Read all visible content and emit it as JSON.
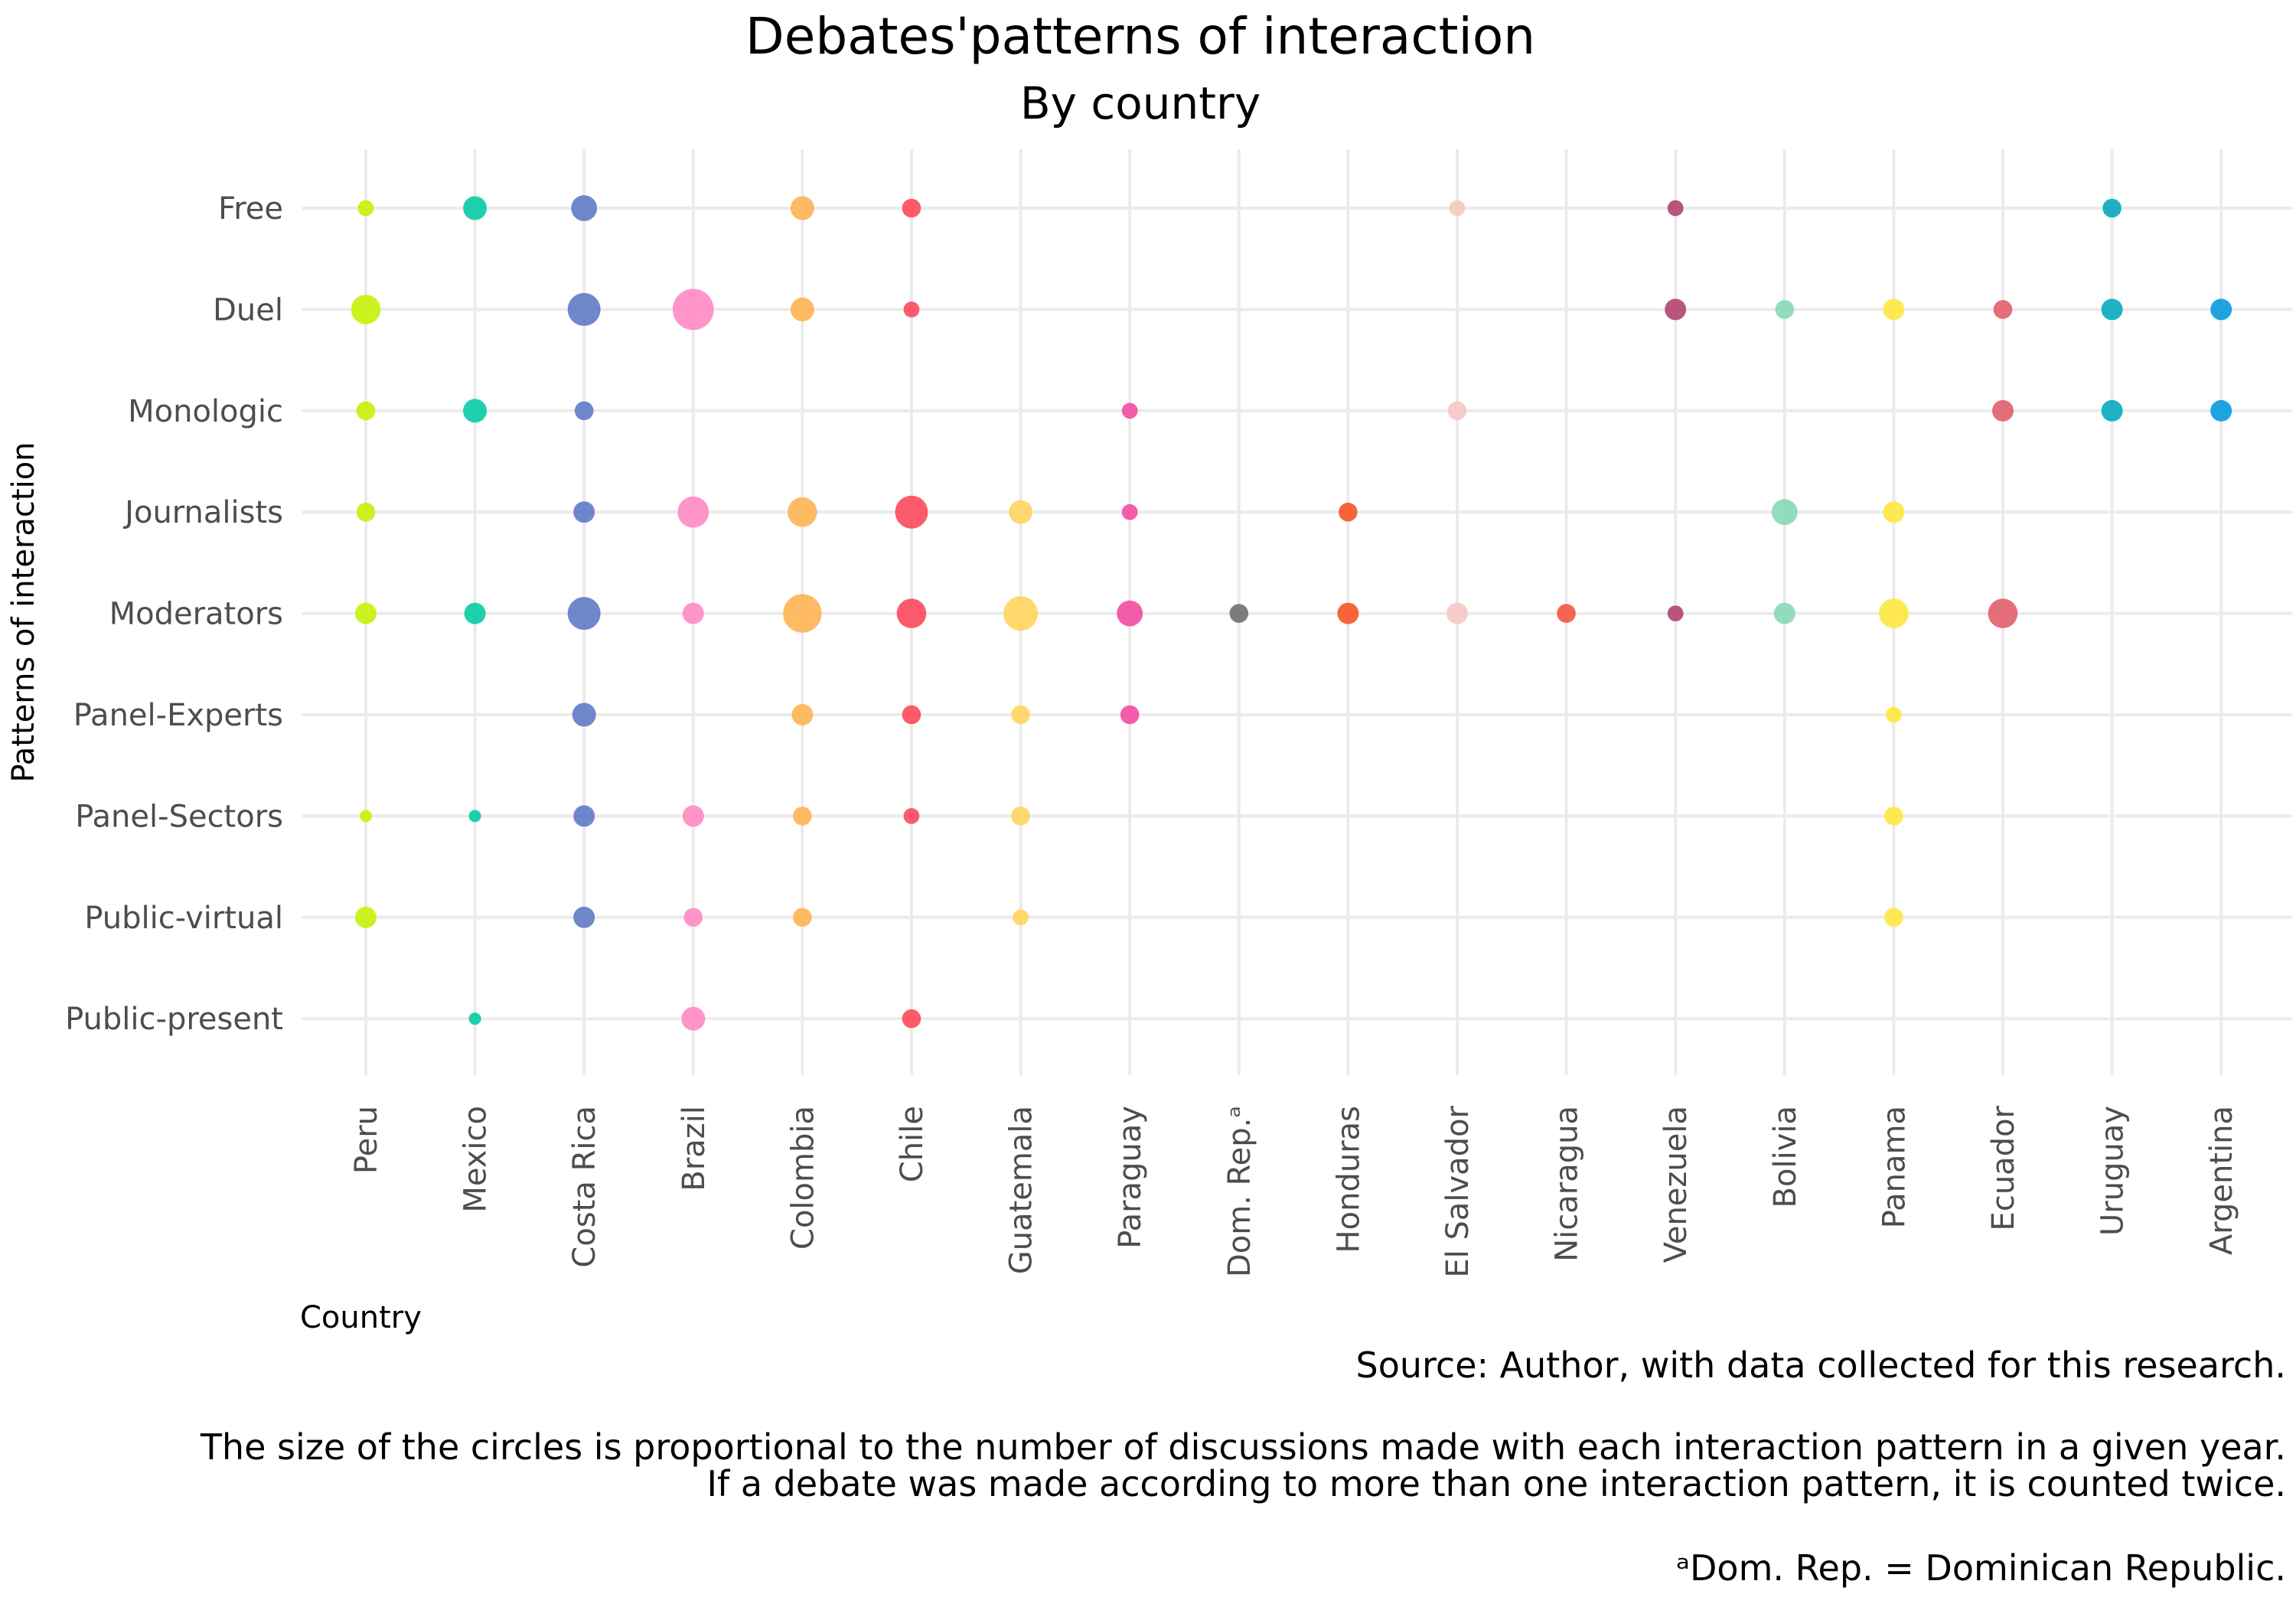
{
  "chart_data": {
    "type": "scatter",
    "title": "Debates'patterns of interaction",
    "subtitle": "By country",
    "xlabel": "Country",
    "ylabel": "Patterns of interaction",
    "caption_lines": [
      "Source: Author, with data collected for this research.",
      "",
      "The size of the circles is proportional to the number of discussions made with each interaction pattern in a given year.",
      "If a debate was made according to more than one interaction pattern, it is counted twice.",
      "",
      "ᵃDom. Rep. = Dominican Republic."
    ],
    "grid": true,
    "legend": "none",
    "countries": [
      "Peru",
      "Mexico",
      "Costa Rica",
      "Brazil",
      "Colombia",
      "Chile",
      "Guatemala",
      "Paraguay",
      "Dom. Rep.ᵃ",
      "Honduras",
      "El Salvador",
      "Nicaragua",
      "Venezuela",
      "Bolivia",
      "Panama",
      "Ecuador",
      "Uruguay",
      "Argentina"
    ],
    "patterns": [
      "Free",
      "Duel",
      "Monologic",
      "Journalists",
      "Moderators",
      "Panel-Experts",
      "Panel-Sectors",
      "Public-virtual",
      "Public-present"
    ],
    "colors": {
      "Peru": "#c5f000",
      "Mexico": "#00c9a3",
      "Costa Rica": "#5b78c4",
      "Brazil": "#ff86c1",
      "Colombia": "#ffb04f",
      "Chile": "#fc4457",
      "Guatemala": "#ffd45a",
      "Paraguay": "#f2479d",
      "Dom. Rep.ᵃ": "#6b6b6b",
      "Honduras": "#f5501e",
      "El Salvador": "#f6c6c0",
      "Nicaragua": "#f5503c",
      "Venezuela": "#b03e6d",
      "Bolivia": "#84d7b3",
      "Panama": "#ffe63a",
      "Ecuador": "#e05a66",
      "Uruguay": "#00a7bb",
      "Argentina": "#0097df"
    },
    "points": [
      {
        "country": "Peru",
        "pattern": "Free",
        "value": 1
      },
      {
        "country": "Peru",
        "pattern": "Duel",
        "value": 4
      },
      {
        "country": "Peru",
        "pattern": "Monologic",
        "value": 1.5
      },
      {
        "country": "Peru",
        "pattern": "Journalists",
        "value": 1.5
      },
      {
        "country": "Peru",
        "pattern": "Moderators",
        "value": 2
      },
      {
        "country": "Peru",
        "pattern": "Panel-Sectors",
        "value": 0.5
      },
      {
        "country": "Peru",
        "pattern": "Public-virtual",
        "value": 2
      },
      {
        "country": "Mexico",
        "pattern": "Free",
        "value": 2.5
      },
      {
        "country": "Mexico",
        "pattern": "Monologic",
        "value": 2.5
      },
      {
        "country": "Mexico",
        "pattern": "Moderators",
        "value": 2
      },
      {
        "country": "Mexico",
        "pattern": "Panel-Sectors",
        "value": 0.5
      },
      {
        "country": "Mexico",
        "pattern": "Public-present",
        "value": 0.5
      },
      {
        "country": "Costa Rica",
        "pattern": "Free",
        "value": 3
      },
      {
        "country": "Costa Rica",
        "pattern": "Duel",
        "value": 5
      },
      {
        "country": "Costa Rica",
        "pattern": "Monologic",
        "value": 1.5
      },
      {
        "country": "Costa Rica",
        "pattern": "Journalists",
        "value": 2
      },
      {
        "country": "Costa Rica",
        "pattern": "Moderators",
        "value": 5
      },
      {
        "country": "Costa Rica",
        "pattern": "Panel-Experts",
        "value": 2.5
      },
      {
        "country": "Costa Rica",
        "pattern": "Panel-Sectors",
        "value": 2
      },
      {
        "country": "Costa Rica",
        "pattern": "Public-virtual",
        "value": 2
      },
      {
        "country": "Brazil",
        "pattern": "Duel",
        "value": 8
      },
      {
        "country": "Brazil",
        "pattern": "Journalists",
        "value": 4.5
      },
      {
        "country": "Brazil",
        "pattern": "Moderators",
        "value": 2
      },
      {
        "country": "Brazil",
        "pattern": "Panel-Sectors",
        "value": 2
      },
      {
        "country": "Brazil",
        "pattern": "Public-virtual",
        "value": 1.5
      },
      {
        "country": "Brazil",
        "pattern": "Public-present",
        "value": 2.5
      },
      {
        "country": "Colombia",
        "pattern": "Free",
        "value": 2.5
      },
      {
        "country": "Colombia",
        "pattern": "Duel",
        "value": 2.5
      },
      {
        "country": "Colombia",
        "pattern": "Journalists",
        "value": 4
      },
      {
        "country": "Colombia",
        "pattern": "Moderators",
        "value": 7
      },
      {
        "country": "Colombia",
        "pattern": "Panel-Experts",
        "value": 2
      },
      {
        "country": "Colombia",
        "pattern": "Panel-Sectors",
        "value": 1.5
      },
      {
        "country": "Colombia",
        "pattern": "Public-virtual",
        "value": 1.5
      },
      {
        "country": "Chile",
        "pattern": "Free",
        "value": 1.5
      },
      {
        "country": "Chile",
        "pattern": "Duel",
        "value": 1
      },
      {
        "country": "Chile",
        "pattern": "Journalists",
        "value": 5
      },
      {
        "country": "Chile",
        "pattern": "Moderators",
        "value": 4
      },
      {
        "country": "Chile",
        "pattern": "Panel-Experts",
        "value": 1.5
      },
      {
        "country": "Chile",
        "pattern": "Panel-Sectors",
        "value": 1
      },
      {
        "country": "Chile",
        "pattern": "Public-present",
        "value": 1.5
      },
      {
        "country": "Guatemala",
        "pattern": "Journalists",
        "value": 2.5
      },
      {
        "country": "Guatemala",
        "pattern": "Moderators",
        "value": 5.5
      },
      {
        "country": "Guatemala",
        "pattern": "Panel-Experts",
        "value": 1.5
      },
      {
        "country": "Guatemala",
        "pattern": "Panel-Sectors",
        "value": 1.5
      },
      {
        "country": "Guatemala",
        "pattern": "Public-virtual",
        "value": 1
      },
      {
        "country": "Paraguay",
        "pattern": "Monologic",
        "value": 1
      },
      {
        "country": "Paraguay",
        "pattern": "Journalists",
        "value": 1
      },
      {
        "country": "Paraguay",
        "pattern": "Moderators",
        "value": 3
      },
      {
        "country": "Paraguay",
        "pattern": "Panel-Experts",
        "value": 1.5
      },
      {
        "country": "Dom. Rep.ᵃ",
        "pattern": "Moderators",
        "value": 1.5
      },
      {
        "country": "Honduras",
        "pattern": "Journalists",
        "value": 1.5
      },
      {
        "country": "Honduras",
        "pattern": "Moderators",
        "value": 2
      },
      {
        "country": "El Salvador",
        "pattern": "Free",
        "value": 1
      },
      {
        "country": "El Salvador",
        "pattern": "Monologic",
        "value": 1.5
      },
      {
        "country": "El Salvador",
        "pattern": "Moderators",
        "value": 2
      },
      {
        "country": "Nicaragua",
        "pattern": "Moderators",
        "value": 1.5
      },
      {
        "country": "Venezuela",
        "pattern": "Free",
        "value": 1
      },
      {
        "country": "Venezuela",
        "pattern": "Duel",
        "value": 2
      },
      {
        "country": "Venezuela",
        "pattern": "Moderators",
        "value": 1
      },
      {
        "country": "Bolivia",
        "pattern": "Duel",
        "value": 1.5
      },
      {
        "country": "Bolivia",
        "pattern": "Journalists",
        "value": 3
      },
      {
        "country": "Bolivia",
        "pattern": "Moderators",
        "value": 2
      },
      {
        "country": "Panama",
        "pattern": "Duel",
        "value": 2
      },
      {
        "country": "Panama",
        "pattern": "Journalists",
        "value": 2
      },
      {
        "country": "Panama",
        "pattern": "Moderators",
        "value": 4
      },
      {
        "country": "Panama",
        "pattern": "Panel-Experts",
        "value": 1
      },
      {
        "country": "Panama",
        "pattern": "Panel-Sectors",
        "value": 1.5
      },
      {
        "country": "Panama",
        "pattern": "Public-virtual",
        "value": 1.5
      },
      {
        "country": "Ecuador",
        "pattern": "Duel",
        "value": 1.5
      },
      {
        "country": "Ecuador",
        "pattern": "Monologic",
        "value": 2
      },
      {
        "country": "Ecuador",
        "pattern": "Moderators",
        "value": 4
      },
      {
        "country": "Uruguay",
        "pattern": "Free",
        "value": 1.5
      },
      {
        "country": "Uruguay",
        "pattern": "Duel",
        "value": 2
      },
      {
        "country": "Uruguay",
        "pattern": "Monologic",
        "value": 2
      },
      {
        "country": "Argentina",
        "pattern": "Duel",
        "value": 2
      },
      {
        "country": "Argentina",
        "pattern": "Monologic",
        "value": 2
      }
    ]
  }
}
